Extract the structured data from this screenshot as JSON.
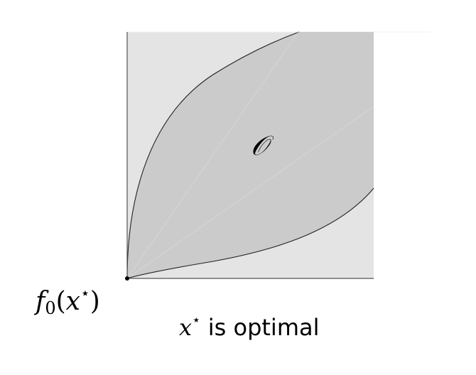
{
  "colors": {
    "outer_region": "#e4e4e4",
    "objective_region": "#cbcbcb",
    "region_border": "#222222",
    "axis": "#555555",
    "point": "#000000",
    "faint_lines": "#dddddd"
  },
  "region_label": {
    "symbol": "𝒪"
  },
  "point_label": {
    "func": "f",
    "subscript": "0",
    "open_paren": "(",
    "var": "x",
    "star": "⋆",
    "close_paren": ")"
  },
  "caption": {
    "var": "x",
    "star": "⋆",
    "text": " is optimal"
  }
}
